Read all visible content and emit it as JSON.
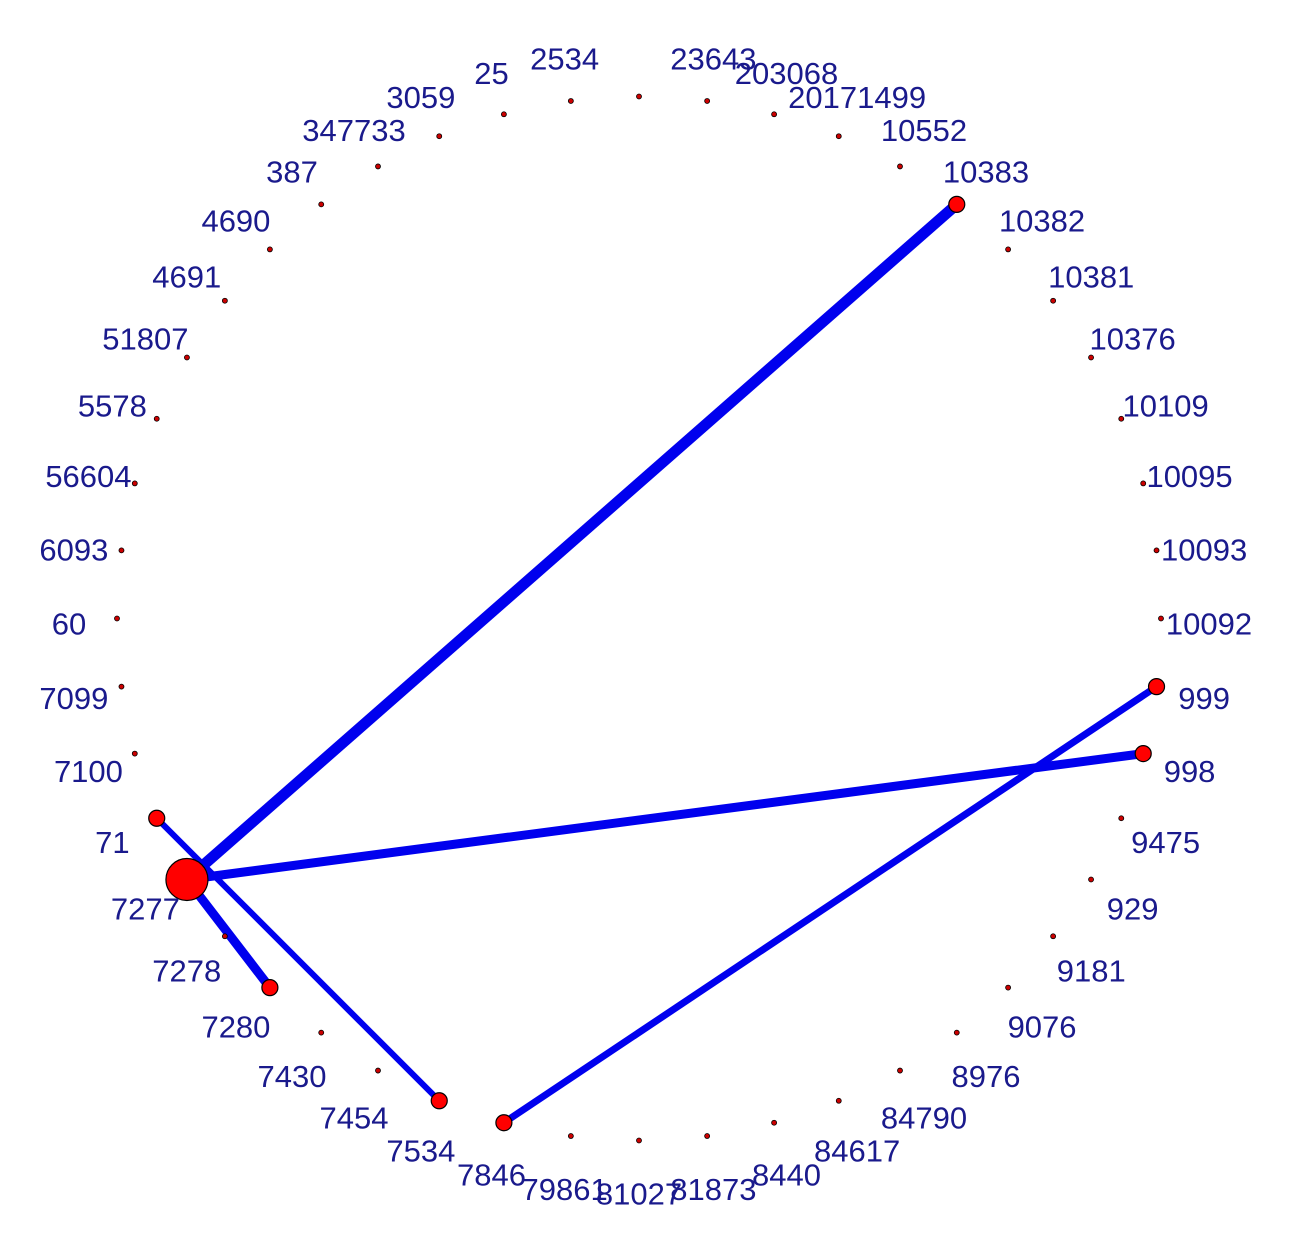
{
  "nodes": [
    "10092",
    "999",
    "998",
    "9475",
    "929",
    "9181",
    "9076",
    "8976",
    "84790",
    "84617",
    "8440",
    "81873",
    "81027",
    "79861",
    "7846",
    "7534",
    "7454",
    "7430",
    "7280",
    "7278",
    "7277",
    "71",
    "7100",
    "7099",
    "60",
    "6093",
    "56604",
    "5578",
    "51807",
    "4691",
    "4690",
    "387",
    "347733",
    "3059",
    "25",
    "2534",
    "23643",
    "203068",
    "20171499",
    "10552",
    "10383",
    "10382",
    "10381",
    "10376",
    "10109",
    "10095",
    "10093"
  ]
}
